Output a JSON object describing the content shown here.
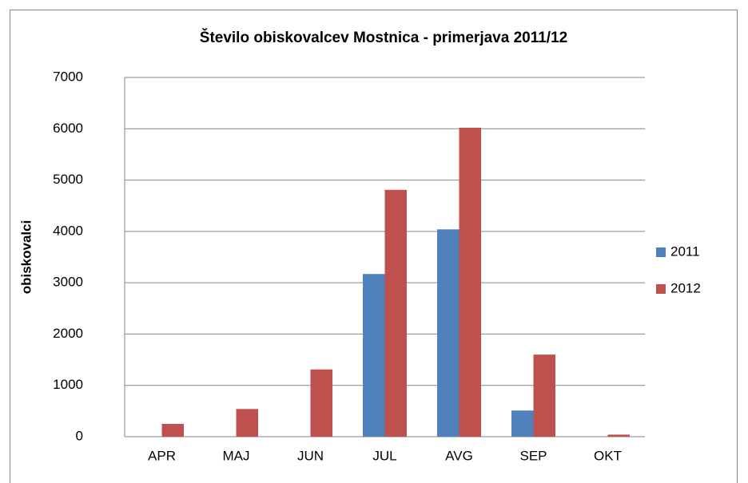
{
  "chart_data": {
    "type": "bar",
    "title": "Število obiskovalcev Mostnica - primerjava 2011/12",
    "y_label": "obiskovalci",
    "categories": [
      "APR",
      "MAJ",
      "JUN",
      "JUL",
      "AVG",
      "SEP",
      "OKT"
    ],
    "series": [
      {
        "name": "2011",
        "color": "#4f81bd",
        "values": [
          0,
          0,
          0,
          3170,
          4040,
          510,
          0
        ]
      },
      {
        "name": "2012",
        "color": "#c0504d",
        "values": [
          250,
          540,
          1310,
          4810,
          6020,
          1600,
          40
        ]
      }
    ],
    "ylim": [
      0,
      7000
    ],
    "yticks": [
      0,
      1000,
      2000,
      3000,
      4000,
      5000,
      6000,
      7000
    ],
    "grid": true,
    "legend": "right"
  }
}
